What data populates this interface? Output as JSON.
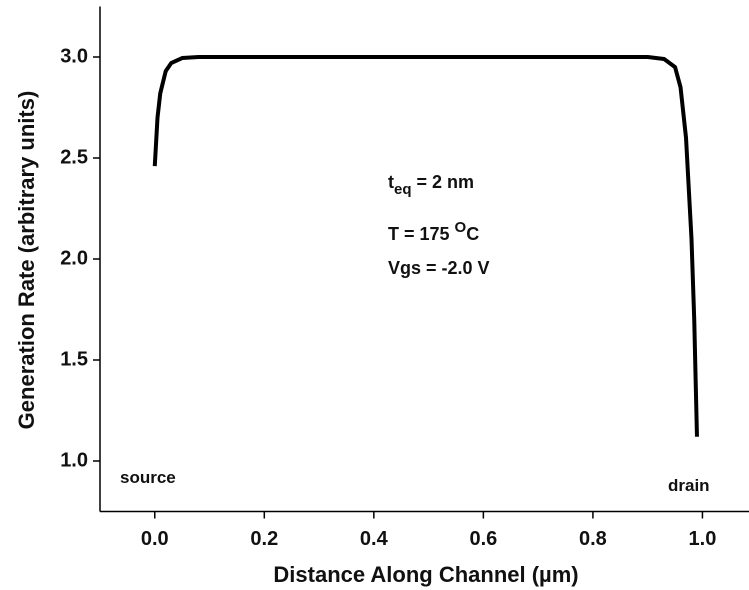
{
  "chart_data": {
    "type": "line",
    "x_label": "Distance Along Channel (µm)",
    "y_label": "Generation Rate (arbitrary units)",
    "xlim": [
      -0.1,
      1.085
    ],
    "ylim": [
      0.75,
      3.25
    ],
    "xticks": [
      {
        "value": 0,
        "label": "0.0"
      },
      0.2,
      0.4,
      0.6,
      0.8,
      {
        "value": 1,
        "label": "1.0"
      }
    ],
    "yticks": [
      {
        "value": 1,
        "label": "1.0"
      },
      1.5,
      {
        "value": 2,
        "label": "2.0"
      },
      2.5,
      {
        "value": 3,
        "label": "3.0"
      }
    ],
    "series": [
      {
        "color": "#000000",
        "x": [
          0,
          0.005,
          0.01,
          0.02,
          0.03,
          0.05,
          0.08,
          0.2,
          0.5,
          0.8,
          0.9,
          0.93,
          0.95,
          0.96,
          0.97,
          0.98,
          0.985,
          0.99
        ],
        "values": [
          2.46,
          2.7,
          2.82,
          2.93,
          2.97,
          2.995,
          3.0,
          3.0,
          3.0,
          3.0,
          3.0,
          2.99,
          2.95,
          2.85,
          2.6,
          2.1,
          1.7,
          1.12
        ]
      }
    ],
    "annotations": {
      "teq": {
        "main": "t",
        "sub": "eq",
        "rest": " = 2 nm"
      },
      "temp": {
        "main": "T = 175 ",
        "sup": "O",
        "rest": "C"
      },
      "vgs": "Vgs = -2.0 V",
      "source": "source",
      "drain": "drain"
    }
  }
}
